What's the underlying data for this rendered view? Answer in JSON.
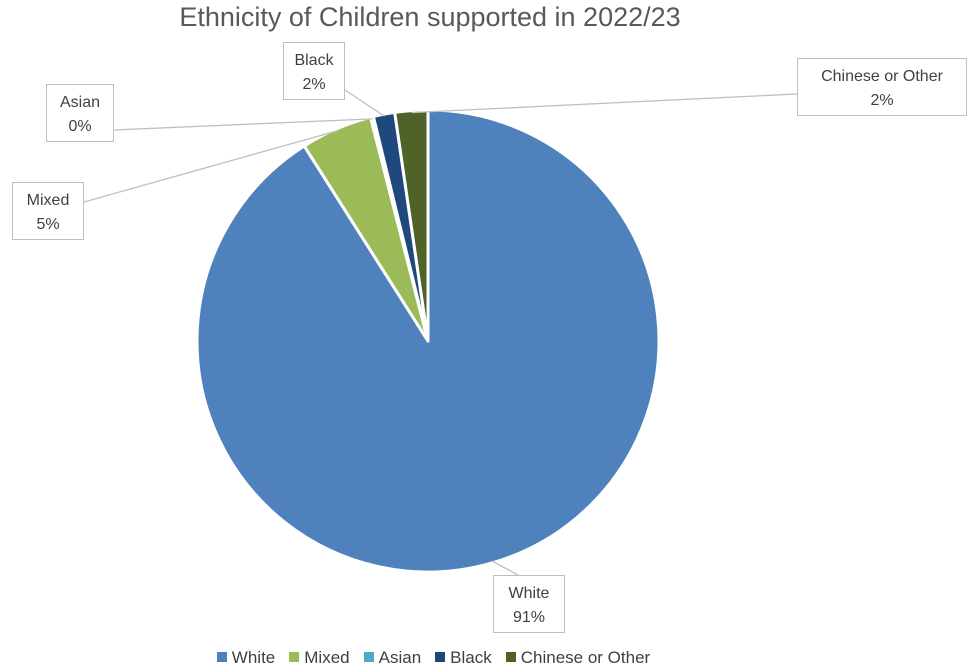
{
  "chart_data": {
    "type": "pie",
    "title": "Ethnicity of Children supported in 2022/23",
    "categories": [
      "White",
      "Mixed",
      "Asian",
      "Black",
      "Chinese or Other"
    ],
    "values": [
      91,
      5,
      0.2,
      1.5,
      2.3
    ],
    "labels": [
      "91%",
      "5%",
      "0%",
      "2%",
      "2%"
    ],
    "colors": [
      "#4f81bd",
      "#9bbb59",
      "#4bacc6",
      "#1f497d",
      "#4f6228"
    ],
    "legend": "bottom",
    "data_labels": "callouts"
  }
}
